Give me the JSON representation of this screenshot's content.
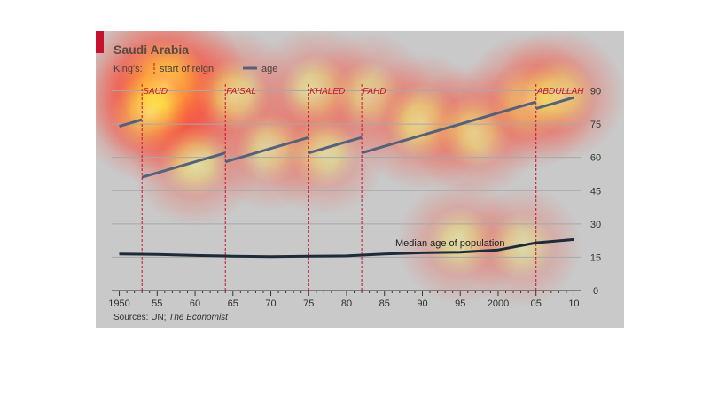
{
  "colors": {
    "age_series": "#55607a",
    "median_series": "#1f2b38",
    "reign_marker": "#c8102e",
    "gridline": "#a8a8a8",
    "panel_background": "#c9c9c9",
    "heatmap_hot": "#ffff66",
    "heatmap_warm": "#ff3c28"
  },
  "chart_data": {
    "type": "line",
    "title": "Saudi Arabia",
    "legend": {
      "prefix": "King's:",
      "items": [
        {
          "key": "reign_start",
          "label": "start of reign",
          "marker": "dashed-vertical",
          "color": "#c8102e"
        },
        {
          "key": "age",
          "label": "age",
          "marker": "line",
          "color": "#55607a"
        }
      ],
      "placement": "top-left"
    },
    "x_ticks": [
      "1950",
      "55",
      "60",
      "65",
      "70",
      "75",
      "80",
      "85",
      "90",
      "95",
      "2000",
      "05",
      "10"
    ],
    "x_tick_values": [
      1950,
      1955,
      1960,
      1965,
      1970,
      1975,
      1980,
      1985,
      1990,
      1995,
      2000,
      2005,
      2010
    ],
    "xlim": [
      1949,
      2011
    ],
    "y_ticks": [
      "0",
      "15",
      "30",
      "45",
      "60",
      "75",
      "90"
    ],
    "y_tick_values": [
      0,
      15,
      30,
      45,
      60,
      75,
      90
    ],
    "ylim": [
      0,
      95
    ],
    "y_axis_side": "right",
    "grid": true,
    "reign_starts": [
      {
        "king": "SAUD",
        "year": 1953
      },
      {
        "king": "FAISAL",
        "year": 1964
      },
      {
        "king": "KHALED",
        "year": 1975
      },
      {
        "king": "FAHD",
        "year": 1982
      },
      {
        "king": "ABDULLAH",
        "year": 2005
      }
    ],
    "series": [
      {
        "key": "age",
        "segments": [
          {
            "x": [
              1950,
              1953
            ],
            "y": [
              74,
              77
            ]
          },
          {
            "x": [
              1953,
              1964
            ],
            "y": [
              51,
              62
            ]
          },
          {
            "x": [
              1964,
              1975
            ],
            "y": [
              58,
              69
            ]
          },
          {
            "x": [
              1975,
              1982
            ],
            "y": [
              62,
              69
            ]
          },
          {
            "x": [
              1982,
              2005
            ],
            "y": [
              62,
              85
            ]
          },
          {
            "x": [
              2005,
              2010
            ],
            "y": [
              82,
              87
            ]
          }
        ]
      },
      {
        "key": "median",
        "name": "Median age of population",
        "x": [
          1950,
          1955,
          1960,
          1965,
          1970,
          1975,
          1980,
          1985,
          1990,
          1995,
          2000,
          2005,
          2010
        ],
        "y": [
          16.5,
          16.3,
          15.8,
          15.5,
          15.3,
          15.5,
          15.6,
          16.5,
          17.0,
          17.3,
          18.3,
          21.5,
          23.0
        ]
      }
    ]
  },
  "source": {
    "prefix": "Sources: UN; ",
    "italic": "The Economist"
  },
  "heatmap": [
    {
      "year": 1956,
      "value": 92,
      "intensity": 1.0
    },
    {
      "year": 1954,
      "value": 80,
      "intensity": 0.6
    },
    {
      "year": 1965,
      "value": 88,
      "intensity": 0.5
    },
    {
      "year": 1976,
      "value": 90,
      "intensity": 0.45
    },
    {
      "year": 1983,
      "value": 88,
      "intensity": 0.4
    },
    {
      "year": 1990,
      "value": 76,
      "intensity": 0.55
    },
    {
      "year": 1997,
      "value": 72,
      "intensity": 0.5
    },
    {
      "year": 2004,
      "value": 85,
      "intensity": 0.55
    },
    {
      "year": 2008,
      "value": 88,
      "intensity": 0.5
    },
    {
      "year": 1960,
      "value": 58,
      "intensity": 0.45
    },
    {
      "year": 1970,
      "value": 64,
      "intensity": 0.4
    },
    {
      "year": 1977,
      "value": 62,
      "intensity": 0.4
    },
    {
      "year": 1995,
      "value": 22,
      "intensity": 0.4
    },
    {
      "year": 2003,
      "value": 20,
      "intensity": 0.35
    }
  ]
}
